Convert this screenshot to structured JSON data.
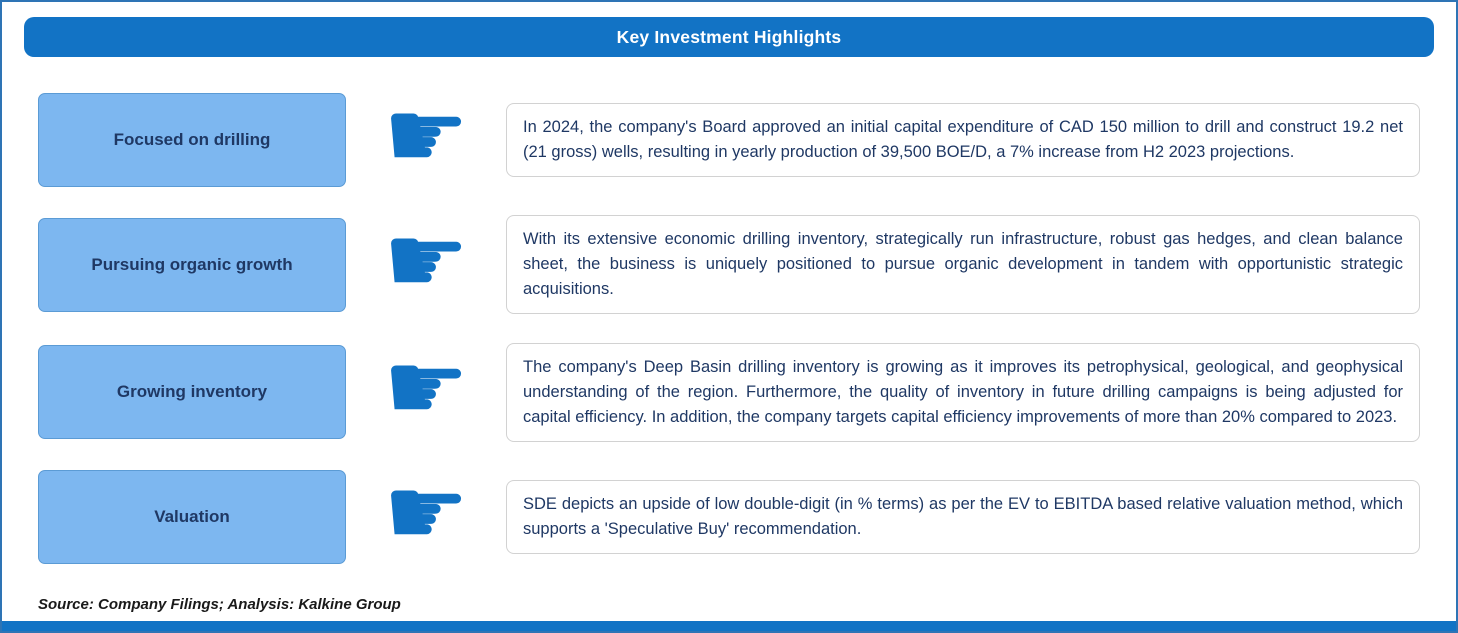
{
  "header": {
    "title": "Key Investment Highlights"
  },
  "rows": [
    {
      "label": "Focused on drilling",
      "text": "In 2024, the company's Board approved an initial capital expenditure of CAD 150 million to drill and construct 19.2 net (21 gross) wells, resulting in yearly production of 39,500 BOE/D, a 7% increase from H2 2023 projections."
    },
    {
      "label": "Pursuing organic growth",
      "text": "With its extensive economic drilling inventory, strategically run infrastructure, robust gas hedges, and clean balance sheet, the business is uniquely positioned to pursue organic development in tandem with opportunistic strategic acquisitions."
    },
    {
      "label": "Growing inventory",
      "text": "The company's Deep Basin drilling inventory is growing as it improves its petrophysical, geological, and geophysical understanding of the region. Furthermore, the quality of inventory in future drilling campaigns is being adjusted for capital efficiency. In addition, the company targets capital efficiency improvements of more than 20% compared to 2023."
    },
    {
      "label": "Valuation",
      "text": "SDE depicts an upside of low double-digit (in % terms) as per the EV to EBITDA based relative valuation method, which supports a 'Speculative Buy' recommendation."
    }
  ],
  "icons": {
    "pointer_glyph": "☛",
    "pointer_name": "pointing-hand-icon"
  },
  "footer": {
    "source": "Source: Company Filings; Analysis: Kalkine Group"
  },
  "colors": {
    "header_bg": "#1273c5",
    "label_bg": "#7db7f0",
    "label_border": "#5b9bd5",
    "label_text": "#1f3864",
    "body_text": "#1f3864",
    "frame_border": "#2e74b5",
    "hand": "#1273c5",
    "bottom_bar": "#1273c5"
  }
}
